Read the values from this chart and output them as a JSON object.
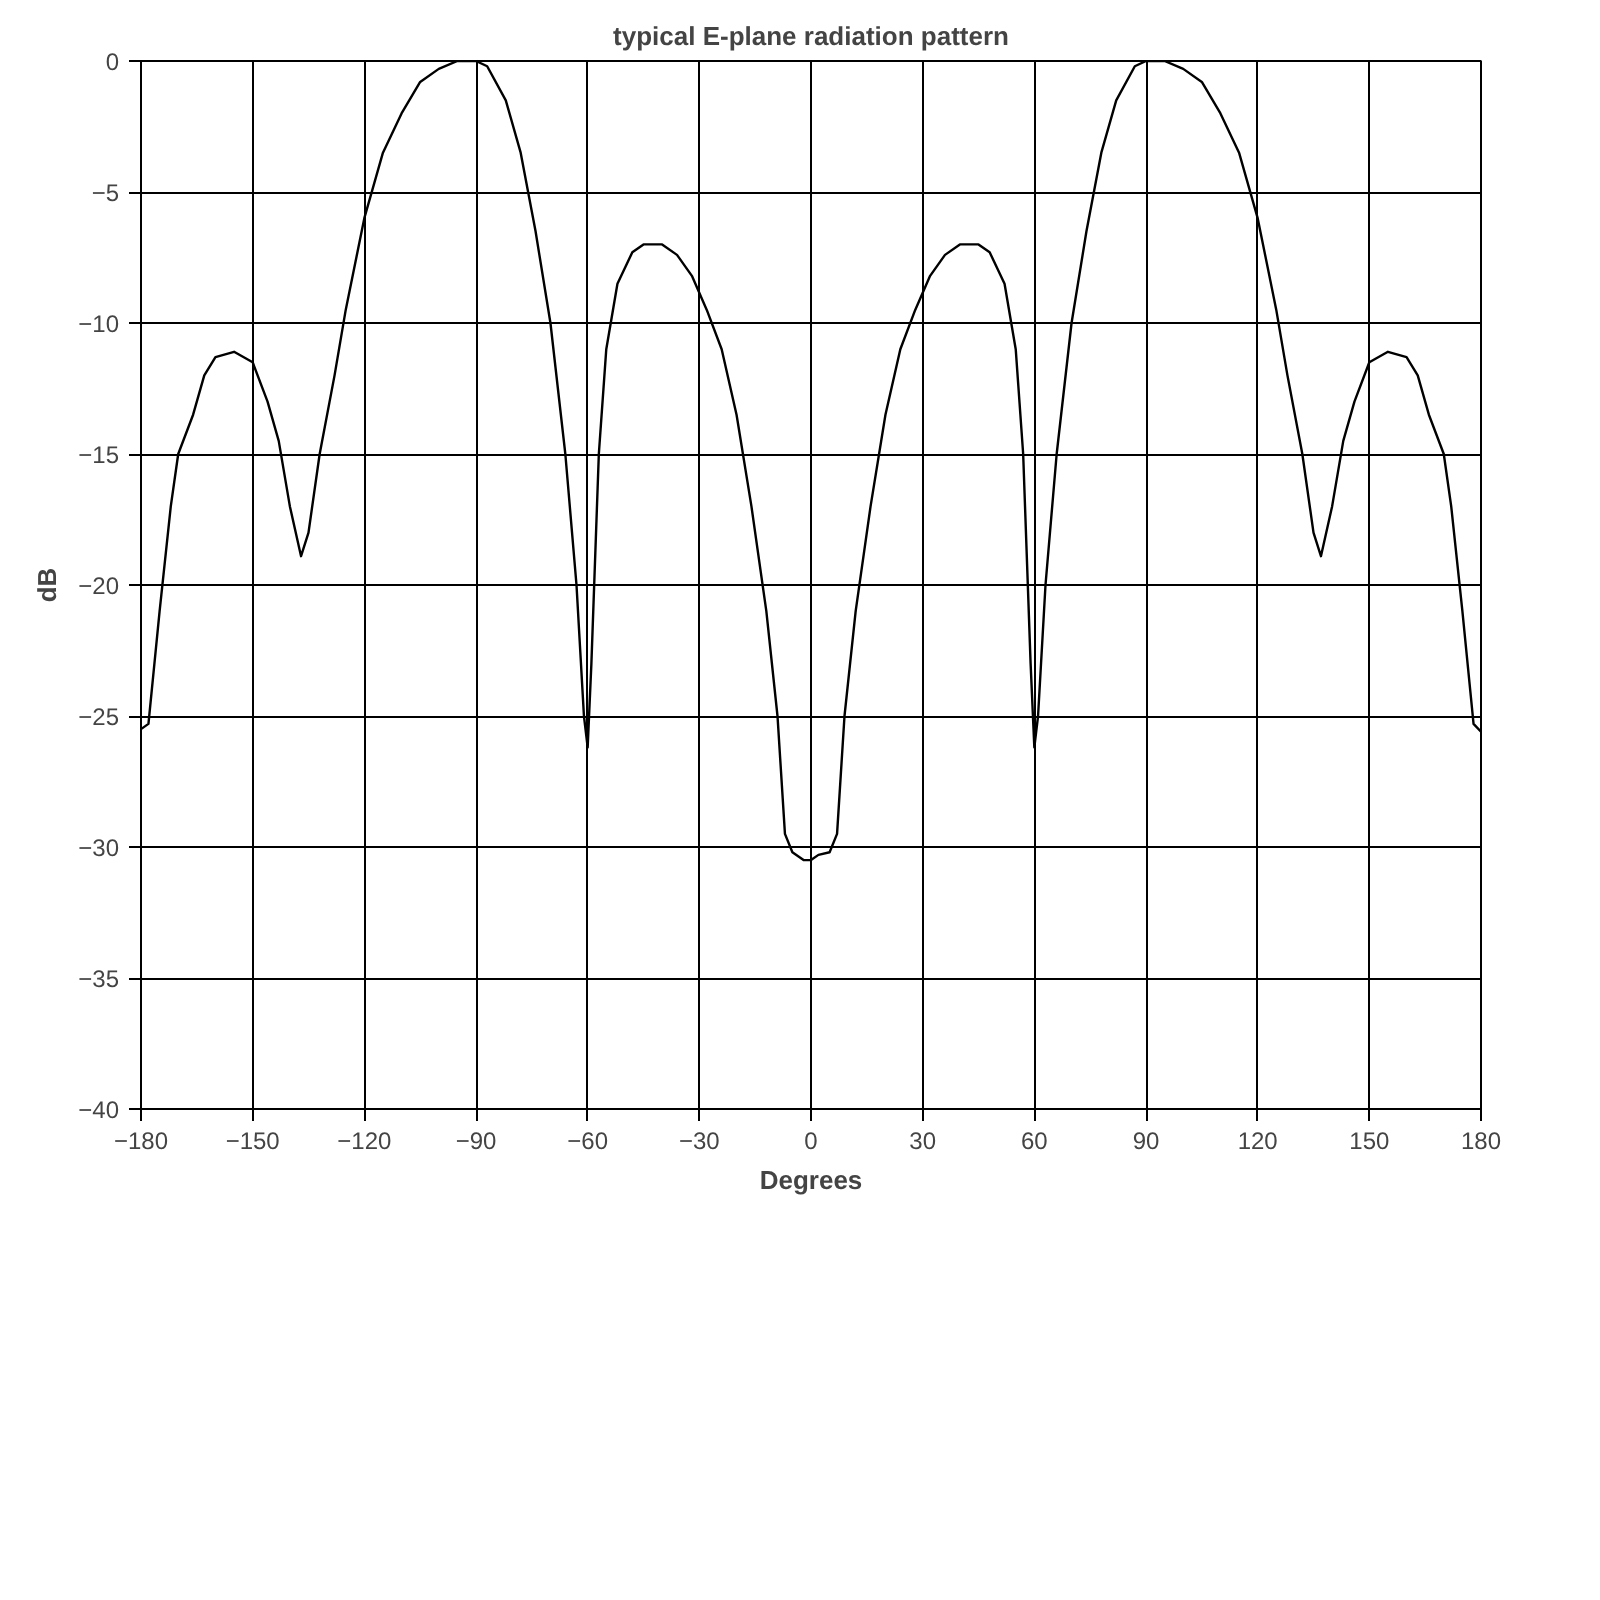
{
  "chart_data": {
    "type": "line",
    "title": "typical E-plane radiation pattern",
    "xlabel": "Degrees",
    "ylabel": "dB",
    "xlim": [
      -180,
      180
    ],
    "ylim": [
      -40,
      0
    ],
    "xticks": [
      -180,
      -150,
      -120,
      -90,
      -60,
      -30,
      0,
      30,
      60,
      90,
      120,
      150,
      180
    ],
    "yticks": [
      -40,
      -35,
      -30,
      -25,
      -20,
      -15,
      -10,
      -5,
      0
    ],
    "grid": true,
    "marker": "none",
    "line_style": "solid",
    "series": [
      {
        "color": "#000000",
        "x": [
          -180,
          -178,
          -175,
          -172,
          -170,
          -166,
          -163,
          -160,
          -155,
          -150,
          -146,
          -143,
          -140,
          -137,
          -135,
          -132,
          -128,
          -125,
          -120,
          -115,
          -110,
          -105,
          -100,
          -95,
          -90,
          -87,
          -82,
          -78,
          -74,
          -70,
          -66,
          -63,
          -61,
          -60,
          -59,
          -57,
          -55,
          -52,
          -48,
          -45,
          -40,
          -36,
          -32,
          -28,
          -24,
          -20,
          -16,
          -12,
          -9,
          -7,
          -5,
          -2,
          0,
          2,
          5,
          7,
          9,
          12,
          16,
          20,
          24,
          28,
          32,
          36,
          40,
          45,
          48,
          52,
          55,
          57,
          59,
          60,
          61,
          63,
          66,
          70,
          74,
          78,
          82,
          87,
          90,
          95,
          100,
          105,
          110,
          115,
          120,
          125,
          128,
          132,
          135,
          137,
          140,
          143,
          146,
          150,
          155,
          160,
          163,
          166,
          170,
          172,
          175,
          178,
          180
        ],
        "values": [
          -25.5,
          -25.3,
          -21,
          -17,
          -15,
          -13.5,
          -12,
          -11.3,
          -11.1,
          -11.5,
          -13,
          -14.5,
          -17,
          -18.9,
          -18,
          -15,
          -12,
          -9.5,
          -6,
          -3.5,
          -2,
          -0.8,
          -0.3,
          0,
          0,
          -0.2,
          -1.5,
          -3.5,
          -6.5,
          -10,
          -15,
          -20,
          -25,
          -26.2,
          -23,
          -15,
          -11,
          -8.5,
          -7.3,
          -7,
          -7,
          -7.4,
          -8.2,
          -9.5,
          -11,
          -13.5,
          -17,
          -21,
          -25,
          -29.5,
          -30.2,
          -30.5,
          -30.5,
          -30.3,
          -30.2,
          -29.5,
          -25,
          -21,
          -17,
          -13.5,
          -11,
          -9.5,
          -8.2,
          -7.4,
          -7,
          -7,
          -7.3,
          -8.5,
          -11,
          -15,
          -23,
          -26.2,
          -25,
          -20,
          -15,
          -10,
          -6.5,
          -3.5,
          -1.5,
          -0.2,
          0,
          0,
          -0.3,
          -0.8,
          -2,
          -3.5,
          -6,
          -9.5,
          -12,
          -15,
          -18,
          -18.9,
          -17,
          -14.5,
          -13,
          -11.5,
          -11.1,
          -11.3,
          -12,
          -13.5,
          -15,
          -17,
          -21,
          -25.3,
          -25.6
        ]
      }
    ]
  }
}
